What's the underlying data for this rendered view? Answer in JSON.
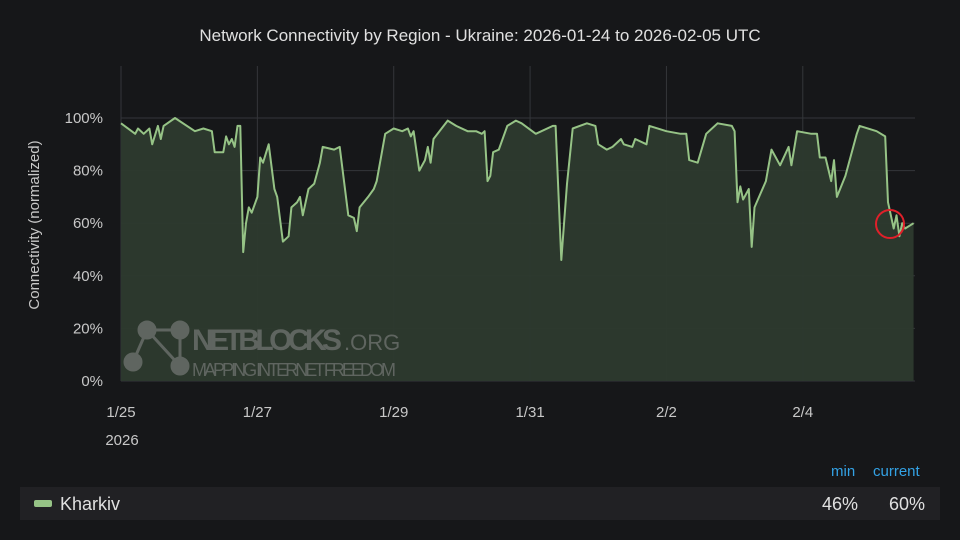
{
  "chart_data": {
    "type": "area",
    "title": "Network Connectivity by Region - Ukraine: 2026-01-24 to 2026-02-05 UTC",
    "ylabel": "Connectivity (normalized)",
    "xlabel": "",
    "ylim": [
      0,
      100
    ],
    "y_ticks": [
      "0%",
      "20%",
      "40%",
      "60%",
      "80%",
      "100%"
    ],
    "x_ticks": [
      {
        "date": "2026-01-25",
        "label": "1/25"
      },
      {
        "date": "2026-01-27",
        "label": "1/27"
      },
      {
        "date": "2026-01-29",
        "label": "1/29"
      },
      {
        "date": "2026-01-31",
        "label": "1/31"
      },
      {
        "date": "2026-02-02",
        "label": "2/2"
      },
      {
        "date": "2026-02-04",
        "label": "2/4"
      }
    ],
    "x_year_label": "2026",
    "xlim": [
      "2026-01-25T00:00",
      "2026-02-05T15:30"
    ],
    "grid": true,
    "colors": {
      "line": "#96c386",
      "fill": "#2d3a2e",
      "background": "#161719",
      "grid": "#34363a",
      "highlight_circle": "#e0202a",
      "legend_header": "#33a2e5"
    },
    "annotation": "red circle around latest drop",
    "series": [
      {
        "name": "Kharkiv",
        "points": [
          [
            "2026-01-25T00:00",
            98
          ],
          [
            "2026-01-25T05:00",
            94
          ],
          [
            "2026-01-25T06:00",
            96
          ],
          [
            "2026-01-25T08:00",
            94
          ],
          [
            "2026-01-25T10:00",
            96
          ],
          [
            "2026-01-25T11:00",
            90
          ],
          [
            "2026-01-25T13:00",
            97
          ],
          [
            "2026-01-25T14:00",
            92
          ],
          [
            "2026-01-25T15:00",
            97
          ],
          [
            "2026-01-25T19:00",
            100
          ],
          [
            "2026-01-26T02:00",
            95
          ],
          [
            "2026-01-26T05:00",
            96
          ],
          [
            "2026-01-26T08:00",
            95
          ],
          [
            "2026-01-26T09:00",
            87
          ],
          [
            "2026-01-26T12:00",
            87
          ],
          [
            "2026-01-26T13:00",
            93
          ],
          [
            "2026-01-26T14:00",
            90
          ],
          [
            "2026-01-26T15:00",
            92
          ],
          [
            "2026-01-26T16:00",
            89
          ],
          [
            "2026-01-26T17:00",
            97
          ],
          [
            "2026-01-26T18:00",
            97
          ],
          [
            "2026-01-26T19:00",
            49
          ],
          [
            "2026-01-26T20:00",
            60
          ],
          [
            "2026-01-26T21:00",
            66
          ],
          [
            "2026-01-26T22:00",
            64
          ],
          [
            "2026-01-27T00:00",
            70
          ],
          [
            "2026-01-27T01:00",
            85
          ],
          [
            "2026-01-27T02:00",
            83
          ],
          [
            "2026-01-27T04:00",
            90
          ],
          [
            "2026-01-27T06:00",
            73
          ],
          [
            "2026-01-27T07:00",
            70
          ],
          [
            "2026-01-27T09:00",
            53
          ],
          [
            "2026-01-27T11:00",
            55
          ],
          [
            "2026-01-27T12:00",
            66
          ],
          [
            "2026-01-27T14:00",
            68
          ],
          [
            "2026-01-27T15:00",
            70
          ],
          [
            "2026-01-27T16:00",
            63
          ],
          [
            "2026-01-27T18:00",
            73
          ],
          [
            "2026-01-27T20:00",
            75
          ],
          [
            "2026-01-27T22:00",
            83
          ],
          [
            "2026-01-27T23:00",
            89
          ],
          [
            "2026-01-28T03:00",
            88
          ],
          [
            "2026-01-28T05:00",
            89
          ],
          [
            "2026-01-28T08:00",
            63
          ],
          [
            "2026-01-28T10:00",
            62
          ],
          [
            "2026-01-28T11:00",
            57
          ],
          [
            "2026-01-28T12:00",
            66
          ],
          [
            "2026-01-28T15:00",
            70
          ],
          [
            "2026-01-28T17:00",
            73
          ],
          [
            "2026-01-28T18:00",
            76
          ],
          [
            "2026-01-28T21:00",
            94
          ],
          [
            "2026-01-29T00:00",
            96
          ],
          [
            "2026-01-29T03:00",
            95
          ],
          [
            "2026-01-29T05:00",
            96
          ],
          [
            "2026-01-29T06:00",
            93
          ],
          [
            "2026-01-29T07:00",
            95
          ],
          [
            "2026-01-29T09:00",
            80
          ],
          [
            "2026-01-29T11:00",
            84
          ],
          [
            "2026-01-29T12:00",
            89
          ],
          [
            "2026-01-29T13:00",
            83
          ],
          [
            "2026-01-29T14:00",
            92
          ],
          [
            "2026-01-29T19:00",
            99
          ],
          [
            "2026-01-29T22:00",
            97
          ],
          [
            "2026-01-30T02:00",
            95
          ],
          [
            "2026-01-30T05:00",
            95
          ],
          [
            "2026-01-30T07:00",
            94
          ],
          [
            "2026-01-30T08:00",
            95
          ],
          [
            "2026-01-30T09:00",
            76
          ],
          [
            "2026-01-30T10:00",
            78
          ],
          [
            "2026-01-30T11:00",
            87
          ],
          [
            "2026-01-30T13:00",
            88
          ],
          [
            "2026-01-30T16:00",
            97
          ],
          [
            "2026-01-30T19:00",
            99
          ],
          [
            "2026-01-30T21:00",
            98
          ],
          [
            "2026-01-31T02:00",
            94
          ],
          [
            "2026-01-31T08:00",
            97
          ],
          [
            "2026-01-31T09:00",
            97
          ],
          [
            "2026-01-31T11:00",
            46
          ],
          [
            "2026-01-31T13:00",
            75
          ],
          [
            "2026-01-31T15:00",
            96
          ],
          [
            "2026-01-31T20:00",
            98
          ],
          [
            "2026-01-31T23:00",
            97
          ],
          [
            "2026-02-01T00:00",
            90
          ],
          [
            "2026-02-01T03:00",
            88
          ],
          [
            "2026-02-01T05:00",
            89
          ],
          [
            "2026-02-01T08:00",
            92
          ],
          [
            "2026-02-01T09:00",
            90
          ],
          [
            "2026-02-01T12:00",
            89
          ],
          [
            "2026-02-01T13:00",
            92
          ],
          [
            "2026-02-01T17:00",
            90
          ],
          [
            "2026-02-01T18:00",
            97
          ],
          [
            "2026-02-02T00:00",
            95
          ],
          [
            "2026-02-02T05:00",
            94
          ],
          [
            "2026-02-02T07:00",
            94
          ],
          [
            "2026-02-02T08:00",
            84
          ],
          [
            "2026-02-02T11:00",
            83
          ],
          [
            "2026-02-02T14:00",
            94
          ],
          [
            "2026-02-02T18:00",
            98
          ],
          [
            "2026-02-02T23:00",
            97
          ],
          [
            "2026-02-03T00:00",
            95
          ],
          [
            "2026-02-03T01:00",
            68
          ],
          [
            "2026-02-03T02:00",
            74
          ],
          [
            "2026-02-03T03:00",
            69
          ],
          [
            "2026-02-03T05:00",
            73
          ],
          [
            "2026-02-03T06:00",
            51
          ],
          [
            "2026-02-03T07:00",
            66
          ],
          [
            "2026-02-03T11:00",
            76
          ],
          [
            "2026-02-03T13:00",
            88
          ],
          [
            "2026-02-03T16:00",
            82
          ],
          [
            "2026-02-03T19:00",
            89
          ],
          [
            "2026-02-03T20:00",
            82
          ],
          [
            "2026-02-03T22:00",
            95
          ],
          [
            "2026-02-04T03:00",
            94
          ],
          [
            "2026-02-04T05:00",
            94
          ],
          [
            "2026-02-04T06:00",
            85
          ],
          [
            "2026-02-04T08:00",
            85
          ],
          [
            "2026-02-04T10:00",
            76
          ],
          [
            "2026-02-04T11:00",
            84
          ],
          [
            "2026-02-04T12:00",
            70
          ],
          [
            "2026-02-04T15:00",
            78
          ],
          [
            "2026-02-04T19:00",
            94
          ],
          [
            "2026-02-04T20:00",
            97
          ],
          [
            "2026-02-05T02:00",
            95
          ],
          [
            "2026-02-05T05:00",
            93
          ],
          [
            "2026-02-05T06:00",
            68
          ],
          [
            "2026-02-05T08:00",
            58
          ],
          [
            "2026-02-05T09:00",
            63
          ],
          [
            "2026-02-05T10:00",
            55
          ],
          [
            "2026-02-05T11:00",
            60
          ],
          [
            "2026-02-05T12:00",
            58
          ],
          [
            "2026-02-05T15:00",
            60
          ]
        ]
      }
    ]
  },
  "watermark": {
    "brand": "NETBLOCKS",
    "tld": ".ORG",
    "tagline": "MAPPING INTERNET FREEDOM"
  },
  "legend": {
    "headers": {
      "min": "min",
      "current": "current"
    },
    "rows": [
      {
        "name": "Kharkiv",
        "min": "46%",
        "current": "60%"
      }
    ]
  }
}
